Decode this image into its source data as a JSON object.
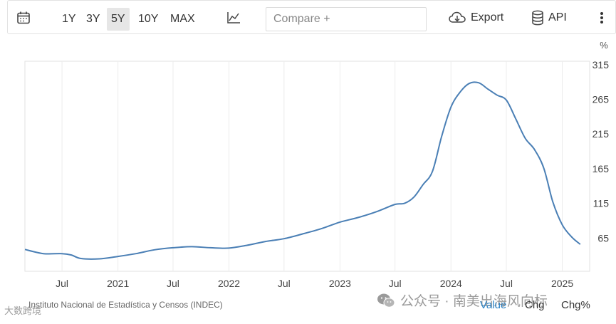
{
  "toolbar": {
    "ranges": [
      "1Y",
      "3Y",
      "5Y",
      "10Y",
      "MAX"
    ],
    "active_range": "5Y",
    "compare_placeholder": "Compare +",
    "export_label": "Export",
    "api_label": "API"
  },
  "source": "Instituto Nacional de Estadística y Censos (INDEC)",
  "tabs": {
    "value": "Value",
    "chg": "Chg",
    "chg_pct": "Chg%"
  },
  "watermark": {
    "text": "公众号 · 南美出海风向标",
    "badge": "大数跨境"
  },
  "colors": {
    "line": "#4a7fb5",
    "active_tab": "#2b83c6"
  },
  "chart_data": {
    "type": "line",
    "unit_label": "%",
    "y_ticks": [
      65,
      115,
      165,
      215,
      265,
      315
    ],
    "y_range": [
      17,
      320
    ],
    "x_range": [
      "2020-03-01",
      "2025-04-01"
    ],
    "x_ticks": [
      {
        "label": "Jul",
        "date": "2020-07-01"
      },
      {
        "label": "2021",
        "date": "2021-01-01"
      },
      {
        "label": "Jul",
        "date": "2021-07-01"
      },
      {
        "label": "2022",
        "date": "2022-01-01"
      },
      {
        "label": "Jul",
        "date": "2022-07-01"
      },
      {
        "label": "2023",
        "date": "2023-01-01"
      },
      {
        "label": "Jul",
        "date": "2023-07-01"
      },
      {
        "label": "2024",
        "date": "2024-01-01"
      },
      {
        "label": "Jul",
        "date": "2024-07-01"
      },
      {
        "label": "2025",
        "date": "2025-01-01"
      }
    ],
    "grid": "vertical",
    "series": [
      {
        "x": [
          "2020-03-01",
          "2020-05-01",
          "2020-07-01",
          "2020-08-01",
          "2020-09-01",
          "2020-11-01",
          "2021-01-01",
          "2021-03-01",
          "2021-05-01",
          "2021-07-01",
          "2021-09-01",
          "2021-11-01",
          "2022-01-01",
          "2022-03-01",
          "2022-05-01",
          "2022-07-01",
          "2022-09-01",
          "2022-11-01",
          "2023-01-01",
          "2023-03-01",
          "2023-05-01",
          "2023-07-01",
          "2023-08-01",
          "2023-09-01",
          "2023-10-01",
          "2023-11-01",
          "2023-12-01",
          "2024-01-01",
          "2024-02-01",
          "2024-03-01",
          "2024-04-01",
          "2024-05-01",
          "2024-06-01",
          "2024-07-01",
          "2024-08-01",
          "2024-09-01",
          "2024-10-01",
          "2024-11-01",
          "2024-12-01",
          "2025-01-01",
          "2025-02-01",
          "2025-03-01"
        ],
        "values": [
          48.5,
          42.5,
          42.5,
          40.5,
          35.5,
          35,
          38.5,
          42.5,
          48,
          51,
          52.5,
          51,
          50.5,
          54.5,
          60,
          64,
          71,
          78.5,
          88,
          94.5,
          103,
          113.5,
          115,
          124,
          142,
          161,
          211,
          254,
          276,
          288,
          289,
          280,
          271,
          264,
          237,
          209,
          193,
          166,
          117,
          84,
          66.5,
          55.9
        ]
      }
    ]
  }
}
